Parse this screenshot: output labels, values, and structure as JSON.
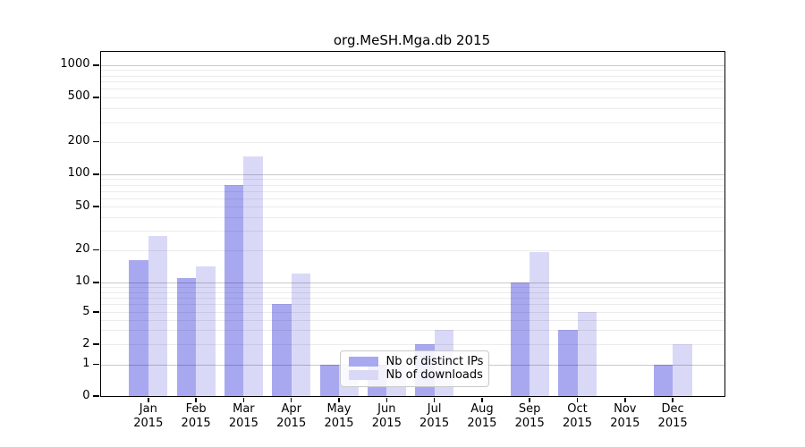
{
  "chart_data": {
    "type": "bar",
    "title": "org.MeSH.Mga.db 2015",
    "categories": [
      "Jan 2015",
      "Feb 2015",
      "Mar 2015",
      "Apr 2015",
      "May 2015",
      "Jun 2015",
      "Jul 2015",
      "Aug 2015",
      "Sep 2015",
      "Oct 2015",
      "Nov 2015",
      "Dec 2015"
    ],
    "category_months": [
      "Jan",
      "Feb",
      "Mar",
      "Apr",
      "May",
      "Jun",
      "Jul",
      "Aug",
      "Sep",
      "Oct",
      "Nov",
      "Dec"
    ],
    "category_year": "2015",
    "series": [
      {
        "name": "Nb of distinct IPs",
        "color": "#a8a8f0",
        "values": [
          16,
          11,
          80,
          6,
          1,
          1,
          2,
          0,
          10,
          3,
          0,
          1
        ]
      },
      {
        "name": "Nb of downloads",
        "color": "#d9d9f7",
        "values": [
          27,
          14,
          145,
          12,
          1,
          1,
          3,
          0,
          19,
          5,
          0,
          2
        ]
      }
    ],
    "xlabel": "",
    "ylabel": "",
    "y_ticks": [
      0,
      1,
      2,
      5,
      10,
      20,
      50,
      100,
      200,
      500,
      1000
    ],
    "y_scale": "log-like with 0 baseline",
    "ylim": [
      0,
      1340
    ],
    "grid": "horizontal: faint log minor lines, darker lines at 1/10/100/1000",
    "legend_position": "lower center inside plot"
  },
  "legend": {
    "items": [
      {
        "label": "Nb of distinct IPs",
        "swatch_color": "#a8a8f0"
      },
      {
        "label": "Nb of downloads",
        "swatch_color": "#d9d9f7"
      }
    ]
  },
  "colors": {
    "distinct_ips": "#a8a8f0",
    "downloads": "#d9d9f7",
    "axis": "#000000",
    "grid_major": "#c8c8c8",
    "grid_minor": "#ececec",
    "legend_border": "#c9c9c9",
    "background": "#ffffff"
  }
}
